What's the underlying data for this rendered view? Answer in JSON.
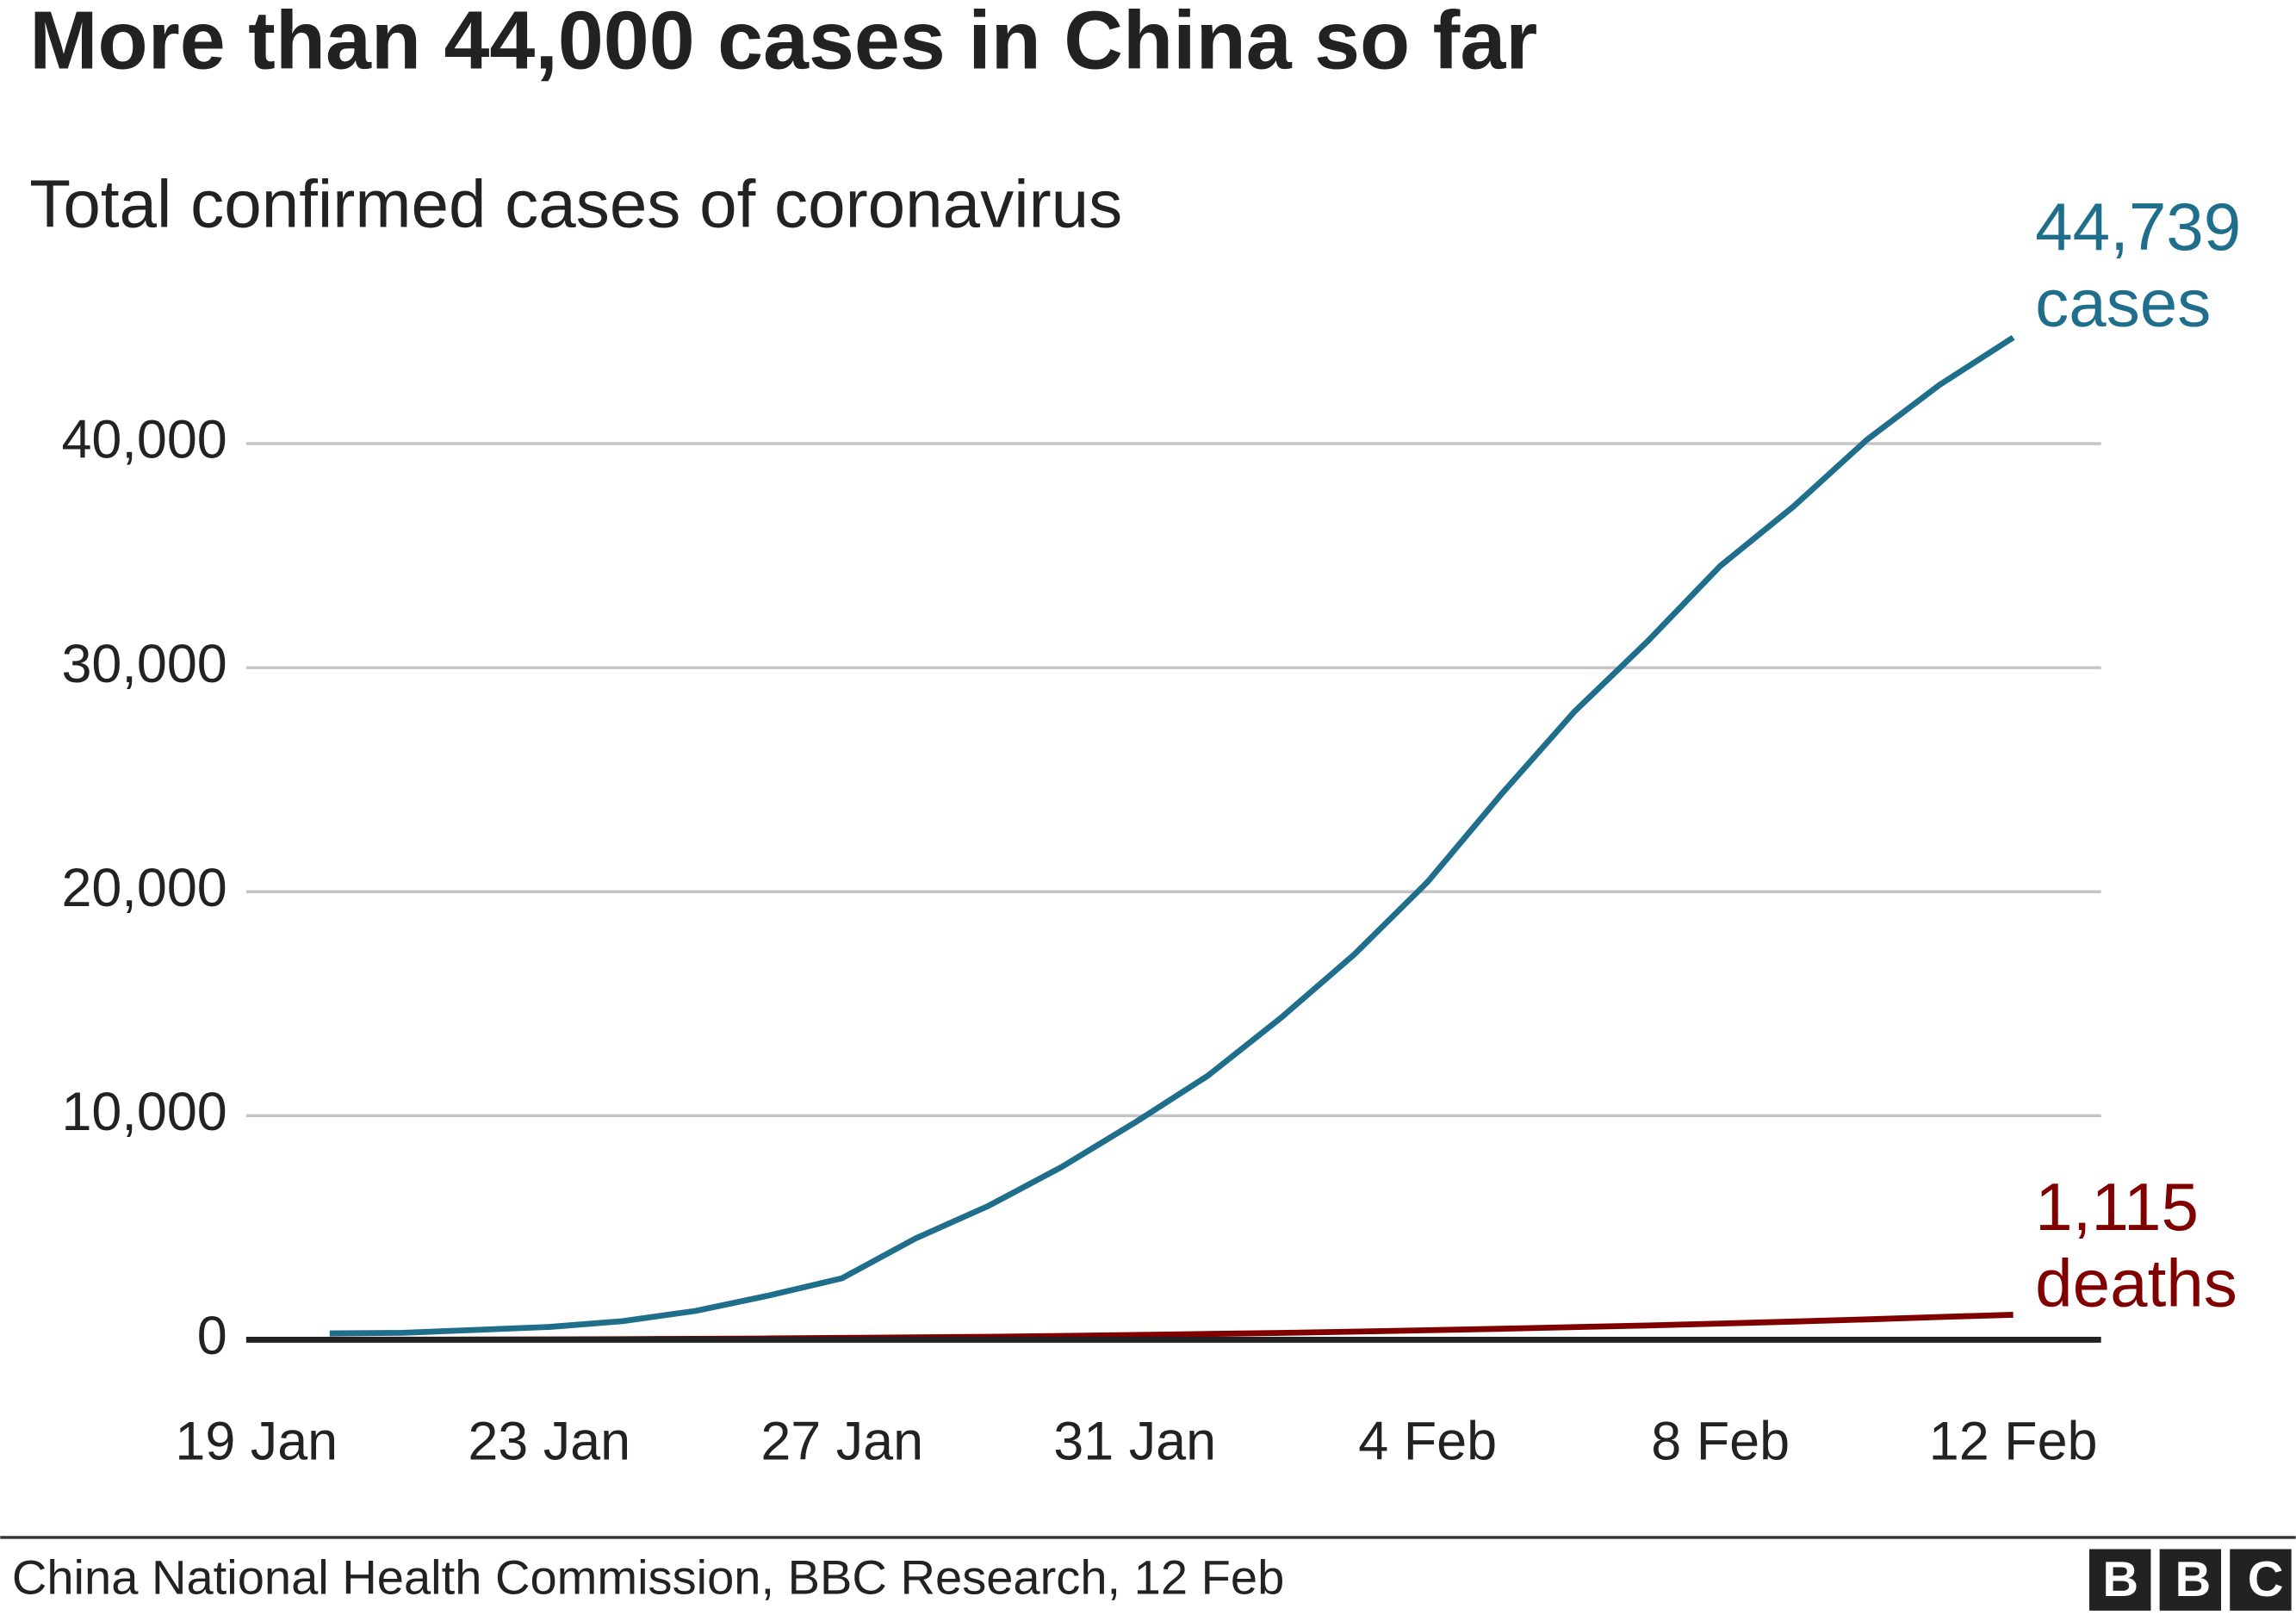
{
  "chart_data": {
    "type": "line",
    "title": "More than 44,000 cases in China so far",
    "subtitle": "Total confirmed cases of coronavirus",
    "source": "China National Health Commission, BBC Research, 12 Feb",
    "logo": "BBC",
    "categories": [
      "19 Jan",
      null,
      null,
      null,
      "23 Jan",
      null,
      null,
      null,
      "27 Jan",
      null,
      null,
      null,
      "31 Jan",
      null,
      null,
      null,
      "4 Feb",
      null,
      null,
      null,
      "8 Feb",
      null,
      null,
      null,
      "12 Feb"
    ],
    "series": [
      {
        "name": "cases",
        "color": "#1f6e8c",
        "values": [
          null,
          282,
          309,
          440,
          571,
          830,
          1287,
          1975,
          2744,
          4515,
          5974,
          7711,
          9692,
          11791,
          14380,
          17205,
          20438,
          24324,
          28018,
          31161,
          34546,
          37198,
          40171,
          42638,
          44739
        ],
        "value_labels": [
          null,
          null,
          null,
          null,
          null,
          null,
          null,
          null,
          null,
          null,
          null,
          null,
          null,
          null,
          null,
          null,
          null,
          null,
          null,
          null,
          null,
          null,
          null,
          null,
          "44,739"
        ]
      },
      {
        "name": "deaths",
        "color": "#800000",
        "values": [
          null,
          6,
          6,
          9,
          17,
          25,
          41,
          56,
          80,
          106,
          132,
          170,
          213,
          259,
          304,
          361,
          425,
          490,
          563,
          636,
          722,
          811,
          908,
          1016,
          1115
        ],
        "value_labels": [
          null,
          null,
          null,
          null,
          null,
          null,
          null,
          null,
          null,
          null,
          null,
          null,
          null,
          null,
          null,
          null,
          null,
          null,
          null,
          null,
          null,
          null,
          null,
          null,
          "1,115"
        ]
      }
    ],
    "ylim": [
      0,
      45000
    ],
    "yticks": [
      0,
      {
        "value": 10000,
        "label": "10,000"
      },
      {
        "value": 20000,
        "label": "20,000"
      },
      {
        "value": 30000,
        "label": "30,000"
      },
      {
        "value": 40000,
        "label": "40,000"
      }
    ],
    "grid": true
  }
}
